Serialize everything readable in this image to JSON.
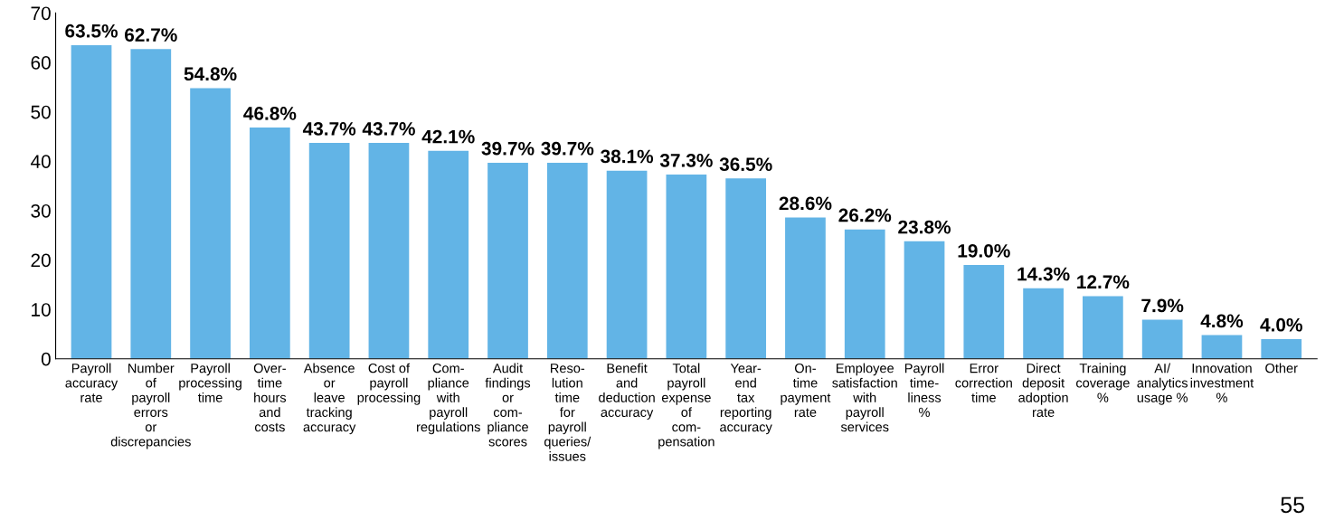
{
  "chart_data": {
    "type": "bar",
    "categories": [
      "Payroll\naccuracy\nrate",
      "Number\nof\npayroll\nerrors\nor\ndiscrepancies",
      "Payroll\nprocessing\ntime",
      "Over-\ntime\nhours\nand\ncosts",
      "Absence\nor\nleave\ntracking\naccuracy",
      "Cost of\npayroll\nprocessing",
      "Com-\npliance\nwith\npayroll\nregulations",
      "Audit\nfindings\nor\ncom-\npliance\nscores",
      "Reso-\nlution\ntime\nfor\npayroll\nqueries/\nissues",
      "Benefit\nand\ndeduction\naccuracy",
      "Total\npayroll\nexpense\nof\ncom-\npensation",
      "Year-\nend\ntax\nreporting\naccuracy",
      "On-\ntime\npayment\nrate",
      "Employee\nsatisfaction\nwith\npayroll\nservices",
      "Payroll\ntime-\nliness\n%",
      "Error\ncorrection\ntime",
      "Direct\ndeposit\nadoption\nrate",
      "Training\ncoverage\n%",
      "AI/\nanalytics\nusage %",
      "Innovation\ninvestment\n%",
      "Other"
    ],
    "values": [
      63.5,
      62.7,
      54.8,
      46.8,
      43.7,
      43.7,
      42.1,
      39.7,
      39.7,
      38.1,
      37.3,
      36.5,
      28.6,
      26.2,
      23.8,
      19.0,
      14.3,
      12.7,
      7.9,
      4.8,
      4.0
    ],
    "value_labels": [
      "63.5%",
      "62.7%",
      "54.8%",
      "46.8%",
      "43.7%",
      "43.7%",
      "42.1%",
      "39.7%",
      "39.7%",
      "38.1%",
      "37.3%",
      "36.5%",
      "28.6%",
      "26.2%",
      "23.8%",
      "19.0%",
      "14.3%",
      "12.7%",
      "7.9%",
      "4.8%",
      "4.0%"
    ],
    "color": "#62b4e6",
    "ylim": [
      0,
      70
    ],
    "yticks": [
      0,
      10,
      20,
      30,
      40,
      50,
      60,
      70
    ],
    "annotations": [
      "55"
    ]
  }
}
